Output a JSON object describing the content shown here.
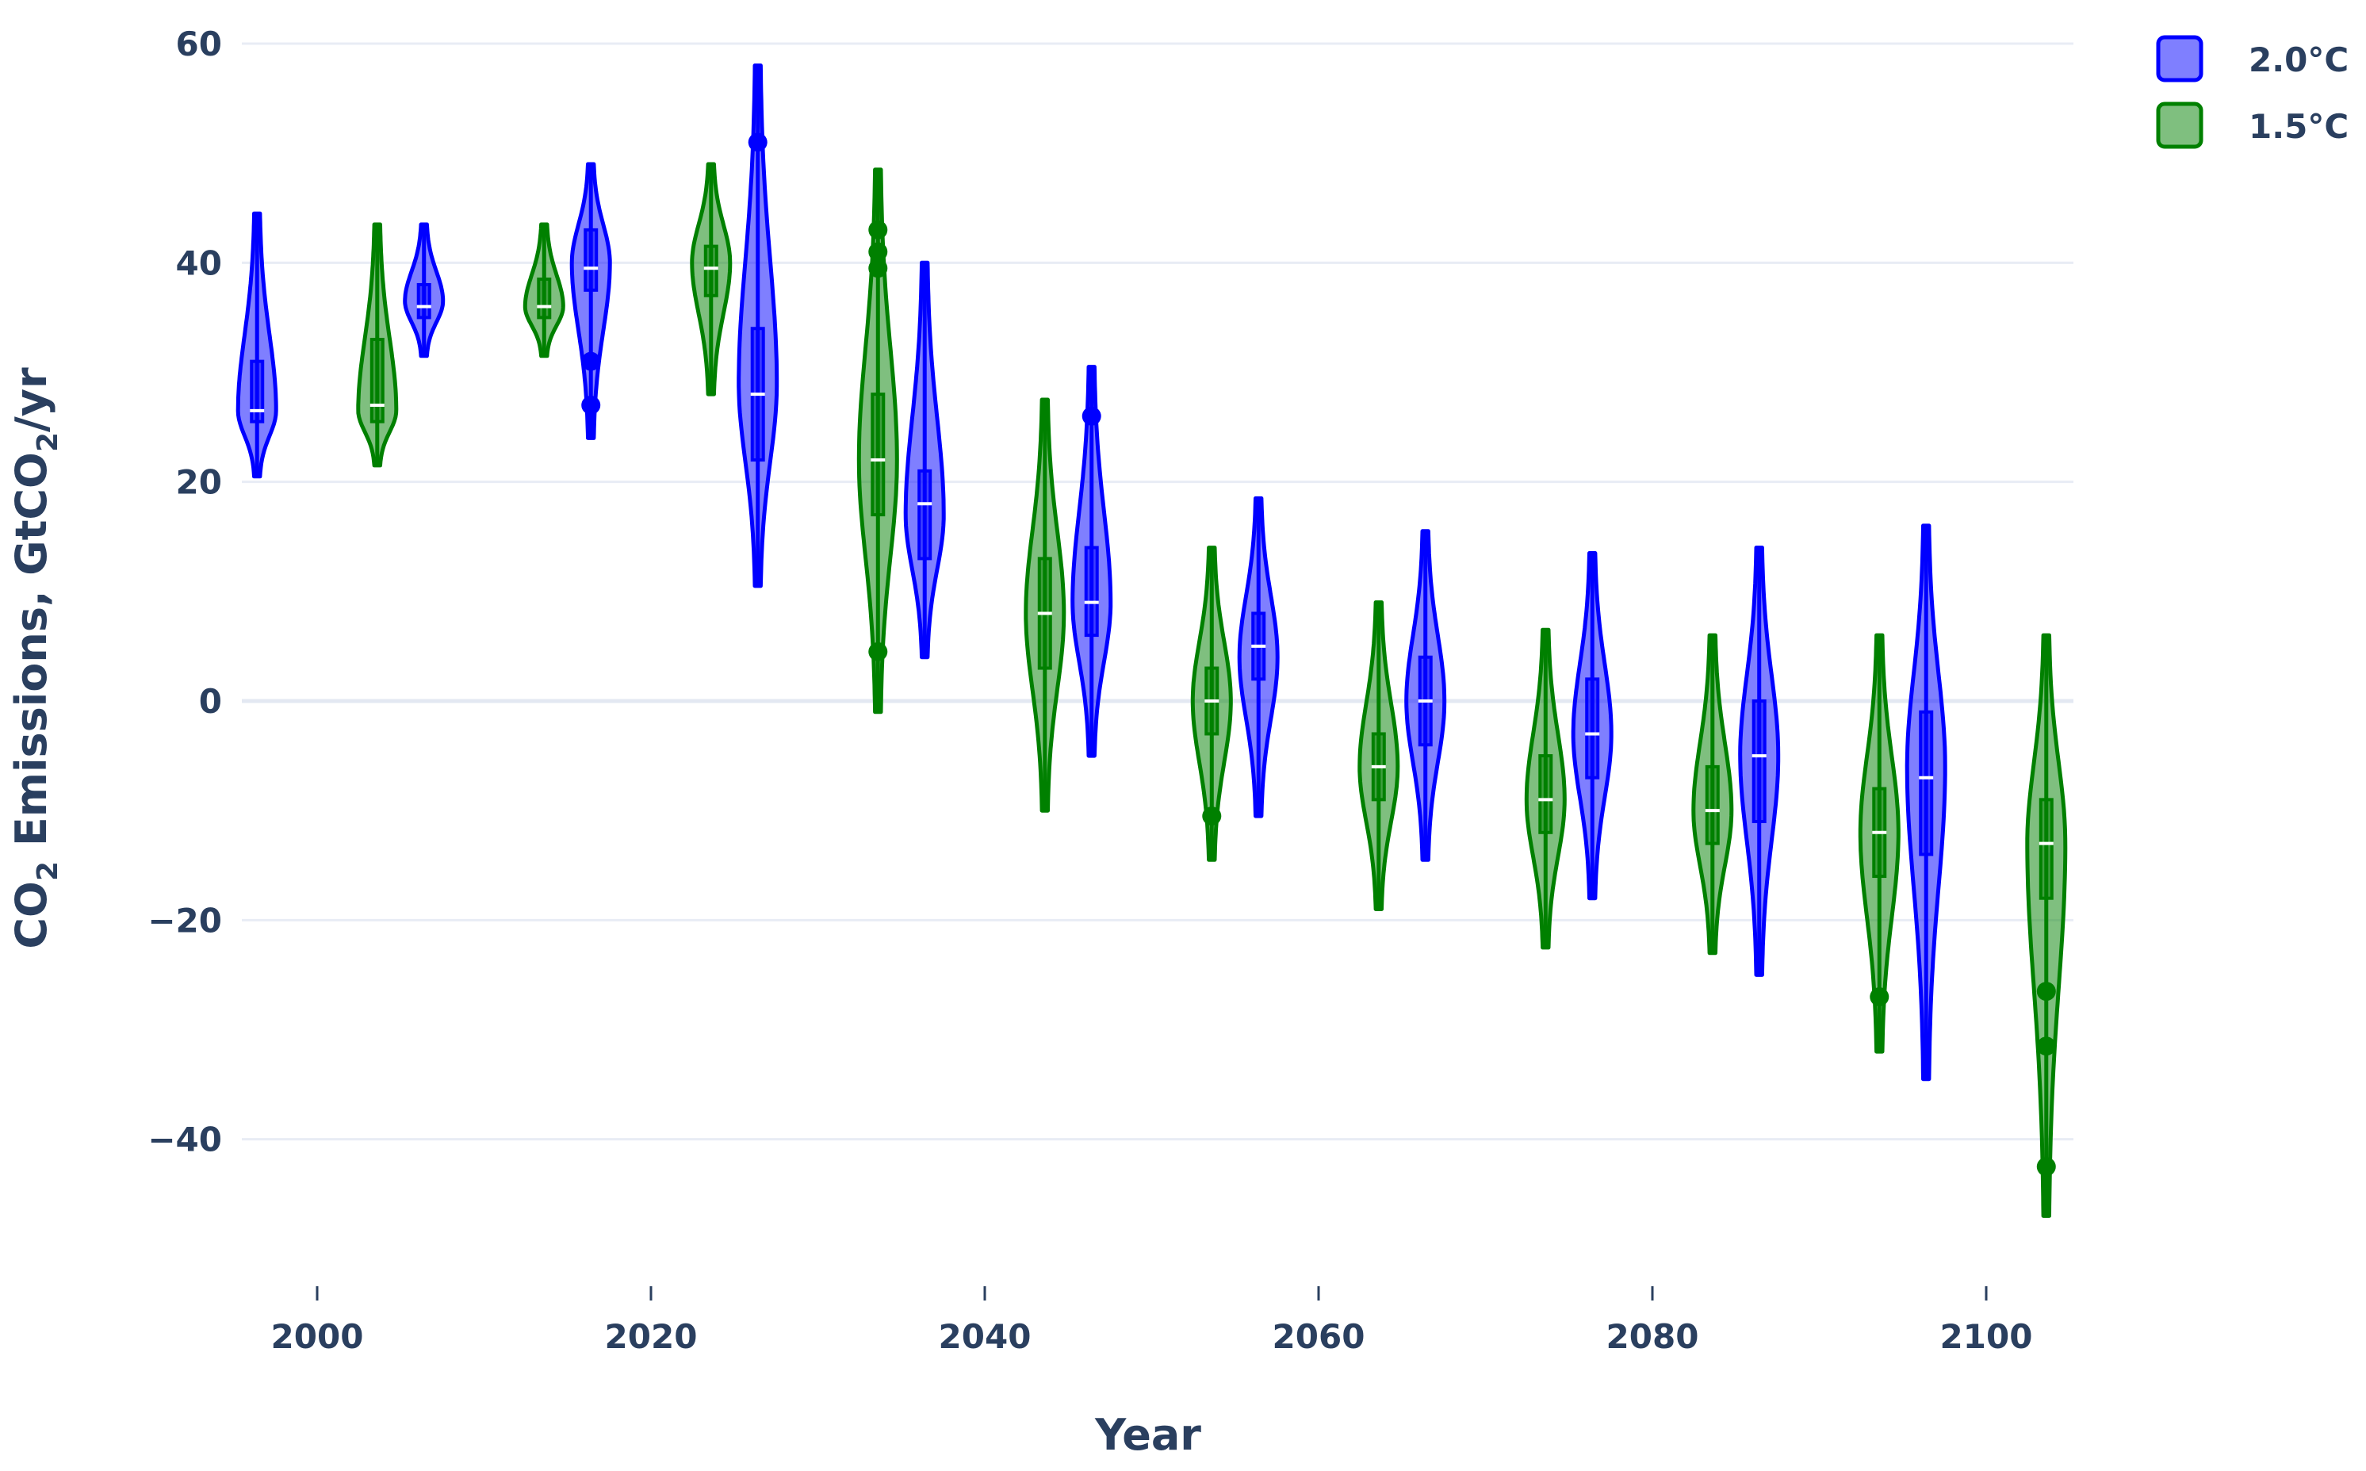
{
  "chart_data": {
    "type": "violin",
    "xlabel": "Year",
    "ylabel_parts": [
      "CO",
      "2",
      " Emissions, GtCO",
      "2",
      "/yr"
    ],
    "ylim": [
      -52,
      62
    ],
    "xlim": [
      1990,
      2105
    ],
    "x_ticks": [
      2000,
      2020,
      2040,
      2060,
      2080,
      2100
    ],
    "y_ticks": [
      -40,
      -20,
      0,
      20,
      40,
      60
    ],
    "y_tick_labels": [
      "−40",
      "−20",
      "0",
      "20",
      "40",
      "60"
    ],
    "legend_position": "top-right",
    "series": [
      {
        "name": "2.0°C",
        "color": "#0000ff",
        "fill": "rgba(0,0,255,0.5)",
        "violins": [
          {
            "year": 2000,
            "min": 20.5,
            "max": 44.5,
            "median": 26.5,
            "q1": 25.5,
            "q3": 31,
            "mode": 26.5,
            "outliers": []
          },
          {
            "year": 2010,
            "min": 31.5,
            "max": 43.5,
            "median": 36,
            "q1": 35,
            "q3": 38,
            "mode": 36.5,
            "outliers": []
          },
          {
            "year": 2020,
            "min": 24,
            "max": 49,
            "median": 39.5,
            "q1": 37.5,
            "q3": 43,
            "mode": 40,
            "outliers": [
              31,
              27
            ]
          },
          {
            "year": 2030,
            "min": 10.5,
            "max": 58,
            "median": 28,
            "q1": 22,
            "q3": 34,
            "mode": 29,
            "outliers": [
              51
            ]
          },
          {
            "year": 2040,
            "min": 4,
            "max": 40,
            "median": 18,
            "q1": 13,
            "q3": 21,
            "mode": 17,
            "outliers": []
          },
          {
            "year": 2050,
            "min": -5,
            "max": 30.5,
            "median": 9,
            "q1": 6,
            "q3": 14,
            "mode": 9,
            "outliers": [
              26
            ]
          },
          {
            "year": 2060,
            "min": -10.5,
            "max": 18.5,
            "median": 5,
            "q1": 2,
            "q3": 8,
            "mode": 4,
            "outliers": []
          },
          {
            "year": 2070,
            "min": -14.5,
            "max": 15.5,
            "median": 0,
            "q1": -4,
            "q3": 4,
            "mode": 0,
            "outliers": []
          },
          {
            "year": 2080,
            "min": -18,
            "max": 13.5,
            "median": -3,
            "q1": -7,
            "q3": 2,
            "mode": -3,
            "outliers": []
          },
          {
            "year": 2090,
            "min": -25,
            "max": 14,
            "median": -5,
            "q1": -11,
            "q3": 0,
            "mode": -5,
            "outliers": []
          },
          {
            "year": 2100,
            "min": -34.5,
            "max": 16,
            "median": -7,
            "q1": -14,
            "q3": -1,
            "mode": -6,
            "outliers": []
          }
        ]
      },
      {
        "name": "1.5°C",
        "color": "#008000",
        "fill": "rgba(0,128,0,0.5)",
        "violins": [
          {
            "year": 2000,
            "min": 21.5,
            "max": 43.5,
            "median": 27,
            "q1": 25.5,
            "q3": 33,
            "mode": 26.5,
            "outliers": []
          },
          {
            "year": 2010,
            "min": 31.5,
            "max": 43.5,
            "median": 36,
            "q1": 35,
            "q3": 38.5,
            "mode": 36,
            "outliers": []
          },
          {
            "year": 2020,
            "min": 28,
            "max": 49,
            "median": 39.5,
            "q1": 37,
            "q3": 41.5,
            "mode": 40,
            "outliers": []
          },
          {
            "year": 2030,
            "min": -1,
            "max": 48.5,
            "median": 22,
            "q1": 17,
            "q3": 28,
            "mode": 22,
            "outliers": [
              43,
              41,
              39.5,
              4.5
            ]
          },
          {
            "year": 2040,
            "min": -10,
            "max": 27.5,
            "median": 8,
            "q1": 3,
            "q3": 13,
            "mode": 8,
            "outliers": []
          },
          {
            "year": 2050,
            "min": -14.5,
            "max": 14,
            "median": 0,
            "q1": -3,
            "q3": 3,
            "mode": 0,
            "outliers": [
              -10.5
            ]
          },
          {
            "year": 2060,
            "min": -19,
            "max": 9,
            "median": -6,
            "q1": -9,
            "q3": -3,
            "mode": -6,
            "outliers": []
          },
          {
            "year": 2070,
            "min": -22.5,
            "max": 6.5,
            "median": -9,
            "q1": -12,
            "q3": -5,
            "mode": -9,
            "outliers": []
          },
          {
            "year": 2080,
            "min": -23,
            "max": 6,
            "median": -10,
            "q1": -13,
            "q3": -6,
            "mode": -10,
            "outliers": []
          },
          {
            "year": 2090,
            "min": -32,
            "max": 6,
            "median": -12,
            "q1": -16,
            "q3": -8,
            "mode": -12,
            "outliers": [
              -27
            ]
          },
          {
            "year": 2100,
            "min": -47,
            "max": 6,
            "median": -13,
            "q1": -18,
            "q3": -9,
            "mode": -13,
            "outliers": [
              -26.5,
              -31.5,
              -42.5
            ]
          }
        ]
      }
    ]
  }
}
